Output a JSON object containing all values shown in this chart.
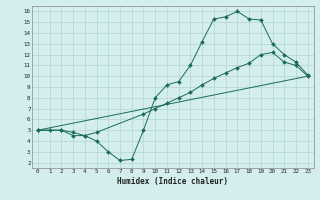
{
  "title": "",
  "xlabel": "Humidex (Indice chaleur)",
  "ylabel": "",
  "bg_color": "#d4eeee",
  "grid_color": "#b8d8d8",
  "line_color": "#1a6b5a",
  "xlim": [
    -0.5,
    23.5
  ],
  "ylim": [
    1.5,
    16.5
  ],
  "xticks": [
    0,
    1,
    2,
    3,
    4,
    5,
    6,
    7,
    8,
    9,
    10,
    11,
    12,
    13,
    14,
    15,
    16,
    17,
    18,
    19,
    20,
    21,
    22,
    23
  ],
  "yticks": [
    2,
    3,
    4,
    5,
    6,
    7,
    8,
    9,
    10,
    11,
    12,
    13,
    14,
    15,
    16
  ],
  "curve1_x": [
    0,
    1,
    2,
    3,
    4,
    5,
    6,
    7,
    8,
    9,
    10,
    11,
    12,
    13,
    14,
    15,
    16,
    17,
    18,
    19,
    20,
    21,
    22,
    23
  ],
  "curve1_y": [
    5,
    5,
    5,
    4.5,
    4.5,
    4,
    3,
    2.2,
    2.3,
    5,
    8,
    9.2,
    9.5,
    11,
    13.2,
    15.3,
    15.5,
    16,
    15.3,
    15.2,
    13,
    12,
    11.3,
    10.1
  ],
  "curve2_x": [
    0,
    2,
    3,
    4,
    5,
    9,
    10,
    11,
    12,
    13,
    14,
    15,
    16,
    17,
    18,
    19,
    20,
    21,
    22,
    23
  ],
  "curve2_y": [
    5,
    5,
    4.8,
    4.5,
    4.8,
    6.5,
    7,
    7.5,
    8,
    8.5,
    9.2,
    9.8,
    10.3,
    10.8,
    11.2,
    12,
    12.2,
    11.3,
    11,
    10
  ],
  "line3_x": [
    0,
    23
  ],
  "line3_y": [
    5,
    10
  ]
}
